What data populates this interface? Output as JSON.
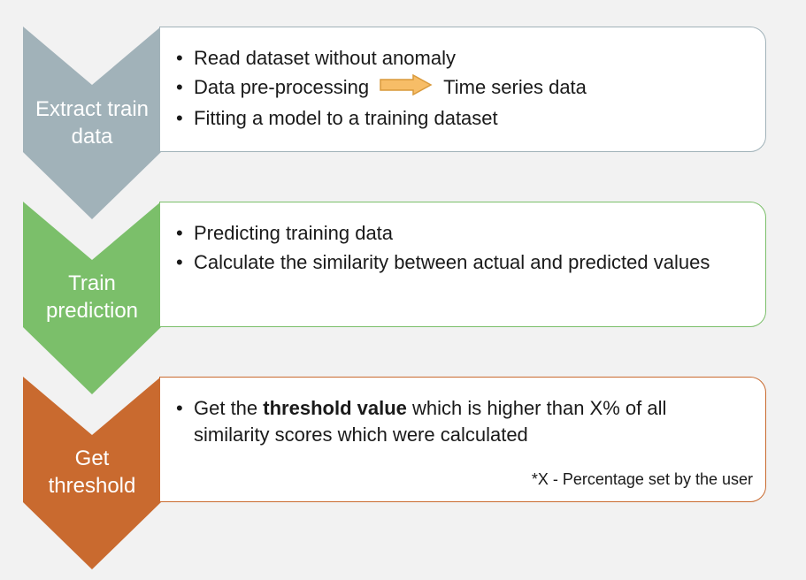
{
  "steps": [
    {
      "label_line1": "Extract train",
      "label_line2": "data",
      "color": "#a1b2b9",
      "border": "#a1b2b9",
      "bullets": [
        "Read dataset without anomaly",
        "Data pre-processing",
        "Fitting a model to a training dataset"
      ],
      "arrow_target": "Time series data"
    },
    {
      "label_line1": "Train",
      "label_line2": "prediction",
      "color": "#7bbf6a",
      "border": "#7bbf6a",
      "bullets": [
        "Predicting training data",
        "Calculate the similarity between actual and predicted values"
      ]
    },
    {
      "label_line1": "Get",
      "label_line2": "threshold",
      "color": "#c96a2f",
      "border": "#c96a2f",
      "bullets_rich": {
        "prefix": "Get the ",
        "bold": "threshold value",
        "suffix": " which is higher than X% of all similarity scores which were calculated"
      },
      "note": "*X - Percentage set by the user"
    }
  ],
  "colors": {
    "arrow_fill": "#f7bd67",
    "arrow_stroke": "#d99a3c",
    "background": "#f2f2f2"
  },
  "icons": {
    "bullet": "•",
    "process_arrow": "right-block-arrow"
  }
}
